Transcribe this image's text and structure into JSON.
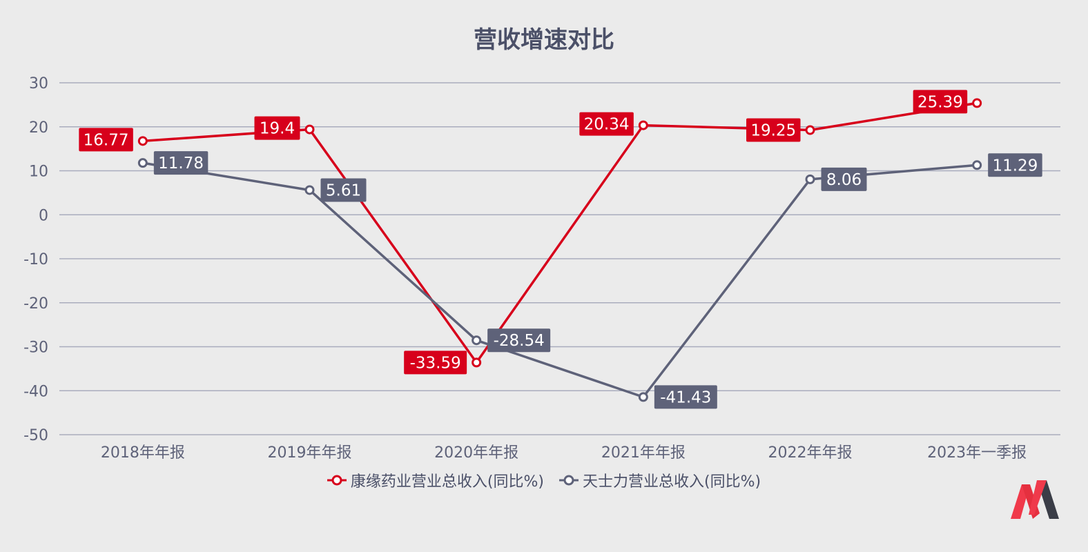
{
  "chart_data": {
    "type": "line",
    "title": "营收增速对比",
    "categories": [
      "2018年年报",
      "2019年年报",
      "2020年年报",
      "2021年年报",
      "2022年年报",
      "2023年一季报"
    ],
    "ylim": [
      -50,
      30
    ],
    "yticks": [
      30,
      20,
      10,
      0,
      -10,
      -20,
      -30,
      -40,
      -50
    ],
    "grid": true,
    "legend_position": "bottom",
    "series": [
      {
        "name": "康缘药业营业总收入(同比%)",
        "color": "#d7001b",
        "values": [
          16.77,
          19.4,
          -33.59,
          20.34,
          19.25,
          25.39
        ],
        "labels": [
          "16.77",
          "19.4",
          "-33.59",
          "20.34",
          "19.25",
          "25.39"
        ]
      },
      {
        "name": "天士力营业总收入(同比%)",
        "color": "#5e6279",
        "values": [
          11.78,
          5.61,
          -28.54,
          -41.43,
          8.06,
          11.29
        ],
        "labels": [
          "11.78",
          "5.61",
          "-28.54",
          "-41.43",
          "8.06",
          "11.29"
        ]
      }
    ]
  }
}
